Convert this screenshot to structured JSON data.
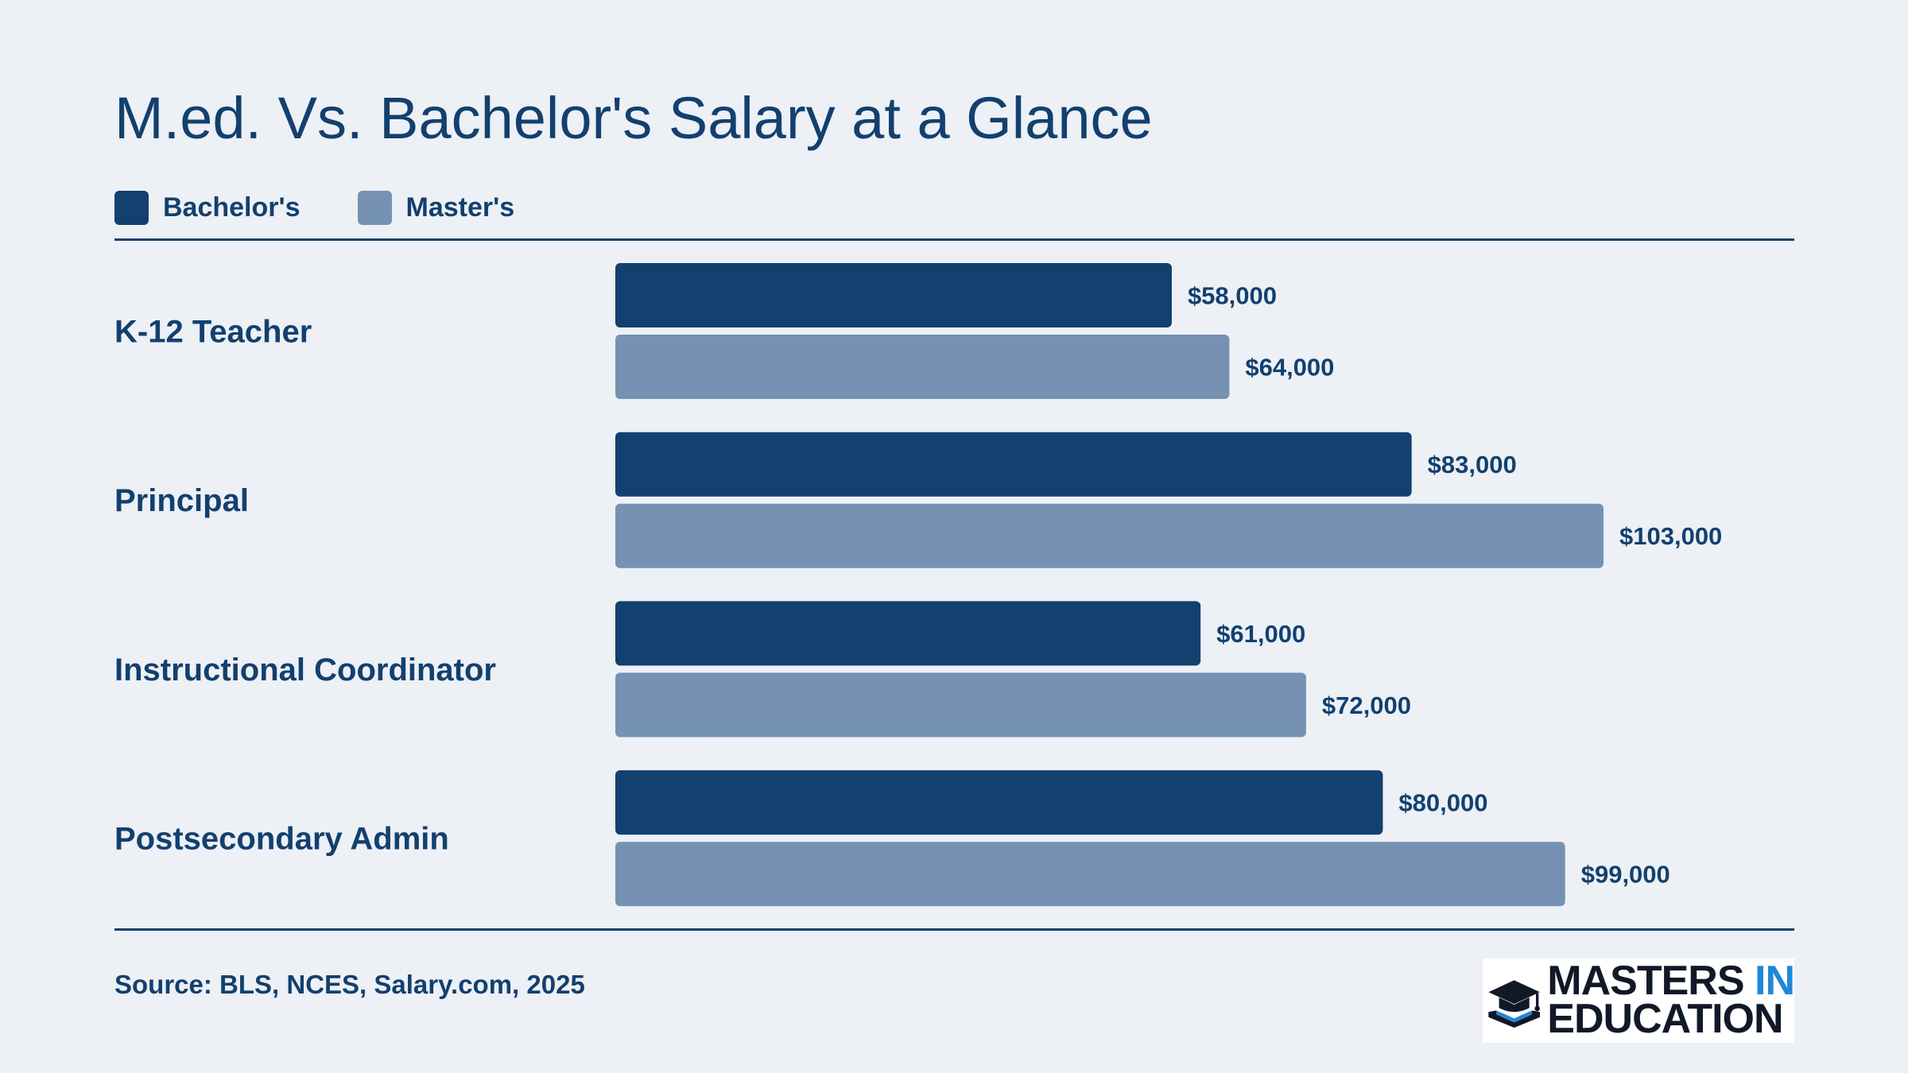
{
  "title": "M.ed. Vs. Bachelor's Salary at a Glance",
  "legend": [
    {
      "label": "Bachelor's",
      "color": "#12406f"
    },
    {
      "label": "Master's",
      "color": "#7592b2"
    }
  ],
  "source": "Source: BLS, NCES, Salary.com, 2025",
  "logo": {
    "line1_main": "MASTERS",
    "line1_accent": "IN",
    "line2": "EDUCATION",
    "icon": "graduation-cap-book-icon"
  },
  "chart_data": {
    "type": "bar",
    "orientation": "horizontal",
    "categories": [
      "K-12 Teacher",
      "Principal",
      "Instructional Coordinator",
      "Postsecondary Admin"
    ],
    "series": [
      {
        "name": "Bachelor's",
        "color": "#12406f",
        "values": [
          58000,
          83000,
          61000,
          80000
        ],
        "labels": [
          "$58,000",
          "$83,000",
          "$61,000",
          "$80,000"
        ]
      },
      {
        "name": "Master's",
        "color": "#7592b2",
        "values": [
          64000,
          103000,
          72000,
          99000
        ],
        "labels": [
          "$64,000",
          "$103,000",
          "$72,000",
          "$99,000"
        ]
      }
    ],
    "xlim": [
      0,
      103000
    ],
    "grid": false,
    "legend_position": "top-left"
  }
}
